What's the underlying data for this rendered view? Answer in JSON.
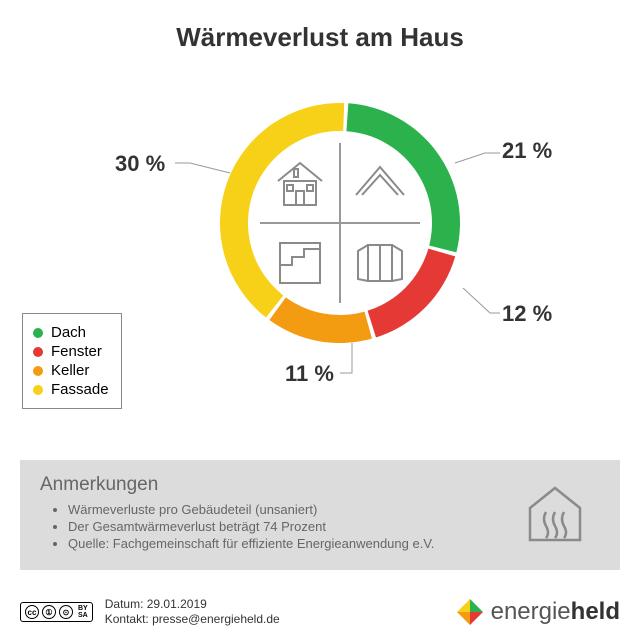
{
  "title": {
    "text": "Wärmeverlust am Haus",
    "fontsize": 26,
    "color": "#333333"
  },
  "chart": {
    "type": "donut",
    "background_color": "#ffffff",
    "ring_outer_r": 120,
    "ring_inner_r": 92,
    "gap_deg": 2,
    "start_angle_deg": -86,
    "slices": [
      {
        "key": "dach",
        "label": "Dach",
        "value": 21,
        "display": "21 %",
        "color": "#2bb24c"
      },
      {
        "key": "fenster",
        "label": "Fenster",
        "value": 12,
        "display": "12 %",
        "color": "#e53935"
      },
      {
        "key": "keller",
        "label": "Keller",
        "value": 11,
        "display": "11 %",
        "color": "#f39c12"
      },
      {
        "key": "fassade",
        "label": "Fassade",
        "value": 30,
        "display": "30 %",
        "color": "#f7d117"
      }
    ],
    "label_fontsize": 22,
    "label_fontweight": "bold",
    "label_color": "#333333",
    "center_icons": [
      "facade-icon",
      "roof-icon",
      "cellar-icon",
      "window-icon"
    ],
    "icon_stroke": "#8a8a8a"
  },
  "legend": {
    "border_color": "#888888",
    "fontsize": 15,
    "items": [
      {
        "label": "Dach",
        "color": "#2bb24c"
      },
      {
        "label": "Fenster",
        "color": "#e53935"
      },
      {
        "label": "Keller",
        "color": "#f39c12"
      },
      {
        "label": "Fassade",
        "color": "#f7d117"
      }
    ]
  },
  "notes": {
    "heading": "Anmerkungen",
    "heading_fontsize": 19,
    "bullet_fontsize": 13,
    "background": "#dcdcdc",
    "bullets": [
      "Wärmeverluste pro Gebäudeteil (unsaniert)",
      "Der Gesamtwärmeverlust beträgt 74 Prozent",
      "Quelle: Fachgemeinschaft für effiziente Energieanwendung e.V."
    ]
  },
  "footer": {
    "license": "CC BY SA",
    "date_label": "Datum: 29.01.2019",
    "contact_label": "Kontakt: presse@energieheld.de",
    "brand_light": "energie",
    "brand_bold": "held",
    "brand_colors": [
      "#e53935",
      "#f39c12",
      "#f7d117",
      "#2bb24c"
    ]
  }
}
